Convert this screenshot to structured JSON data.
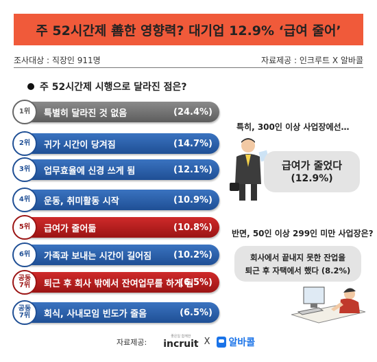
{
  "header": {
    "title": "주 52시간제 善한 영향력? 대기업 12.9% ‘급여 줄어’",
    "survey_target": "조사대상 : 직장인 911명",
    "data_source": "자료제공 : 인크루트 X 알바콜"
  },
  "question": "주 52시간제 시행으로 달라진 점은?",
  "chart_data": {
    "type": "bar",
    "title": "주 52시간제 시행으로 달라진 점은?",
    "categories": [
      "특별히 달라진 것 없음",
      "귀가 시간이 당겨짐",
      "업무효율에 신경 쓰게 됨",
      "운동, 취미활동 시작",
      "급여가 줄어듦",
      "가족과 보내는 시간이 길어짐",
      "퇴근 후 회사 밖에서 잔여업무를 하게 됨",
      "회식, 사내모임 빈도가 줄음"
    ],
    "values": [
      24.4,
      14.7,
      12.1,
      10.9,
      10.8,
      10.2,
      6.5,
      6.5
    ],
    "value_labels": [
      "(24.4%)",
      "(14.7%)",
      "(12.1%)",
      "(10.9%)",
      "(10.8%)",
      "(10.2%)",
      "(6.5%)",
      "(6.5%)"
    ],
    "ranks": [
      "1위",
      "2위",
      "3위",
      "4위",
      "5위",
      "6위",
      "공동\n7위",
      "공동\n7위"
    ],
    "colors": [
      "gray",
      "blue",
      "blue",
      "blue",
      "red",
      "blue",
      "red",
      "blue"
    ]
  },
  "callout1": {
    "heading": "특히, 300인 이상 사업장에선…",
    "line1": "급여가 줄었다",
    "line2": "(12.9%)"
  },
  "callout2": {
    "heading": "반면, 50인 이상 299인 미만 사업장은?",
    "line1": "회사에서 끝내지 못한 잔업을",
    "line2": "퇴근 후 자택에서 했다 (8.2%)"
  },
  "footer": {
    "label": "자료제공:",
    "incruit_tag": "좋은일 함께한",
    "incruit_name": "incruit",
    "separator": "X",
    "albacall_name": "알바콜"
  },
  "palette": {
    "title_bg": "#f05a3a",
    "gray": "#5d5d5d",
    "blue": "#1f4f95",
    "red": "#9b1414",
    "callout_bg": "#e4e4e4"
  }
}
